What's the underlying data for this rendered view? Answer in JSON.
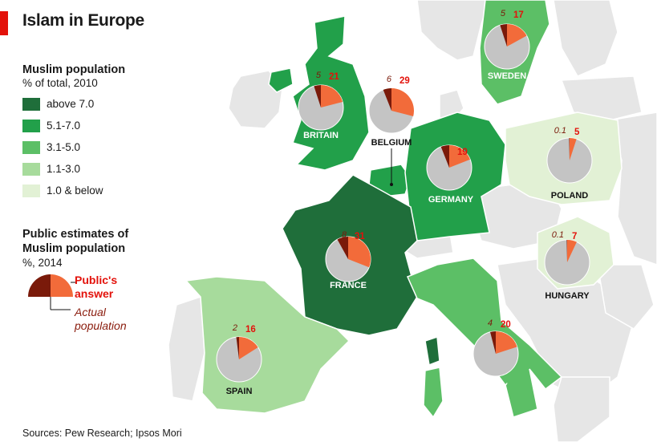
{
  "title": "Islam in Europe",
  "legend": {
    "title": "Muslim population",
    "subtitle": "% of total, 2010",
    "items": [
      {
        "label": "above 7.0",
        "color": "#1f6e3a"
      },
      {
        "label": "5.1-7.0",
        "color": "#22a04a"
      },
      {
        "label": "3.1-5.0",
        "color": "#5cbf66"
      },
      {
        "label": "1.1-3.0",
        "color": "#a7db9c"
      },
      {
        "label": "1.0 & below",
        "color": "#e2f1d5"
      }
    ]
  },
  "estimates_key": {
    "title": "Public estimates of Muslim population",
    "subtitle": "%, 2014",
    "public_label": "Public's answer",
    "actual_label": "Actual population",
    "public_color": "#f26b3a",
    "actual_color": "#7a1a0a",
    "rest_color": "#c4c4c4"
  },
  "countries": [
    {
      "id": "britain",
      "name": "BRITAIN",
      "actual": 5,
      "public": 21,
      "band": "5.1-7.0"
    },
    {
      "id": "belgium",
      "name": "BELGIUM",
      "actual": 6,
      "public": 29,
      "band": "5.1-7.0"
    },
    {
      "id": "sweden",
      "name": "SWEDEN",
      "actual": 5,
      "public": 17,
      "band": "3.1-5.0"
    },
    {
      "id": "germany",
      "name": "GERMANY",
      "actual": 6,
      "public": 19,
      "band": "5.1-7.0"
    },
    {
      "id": "poland",
      "name": "POLAND",
      "actual": 0.1,
      "public": 5,
      "band": "1.0 & below"
    },
    {
      "id": "france",
      "name": "FRANCE",
      "actual": 8,
      "public": 31,
      "band": "above 7.0"
    },
    {
      "id": "hungary",
      "name": "HUNGARY",
      "actual": 0.1,
      "public": 7,
      "band": "1.0 & below"
    },
    {
      "id": "spain",
      "name": "SPAIN",
      "actual": 2,
      "public": 16,
      "band": "1.1-3.0"
    },
    {
      "id": "italy",
      "name": "ITALY",
      "actual": 4,
      "public": 20,
      "band": "3.1-5.0"
    }
  ],
  "sources": "Sources: Pew Research; Ipsos Mori"
}
